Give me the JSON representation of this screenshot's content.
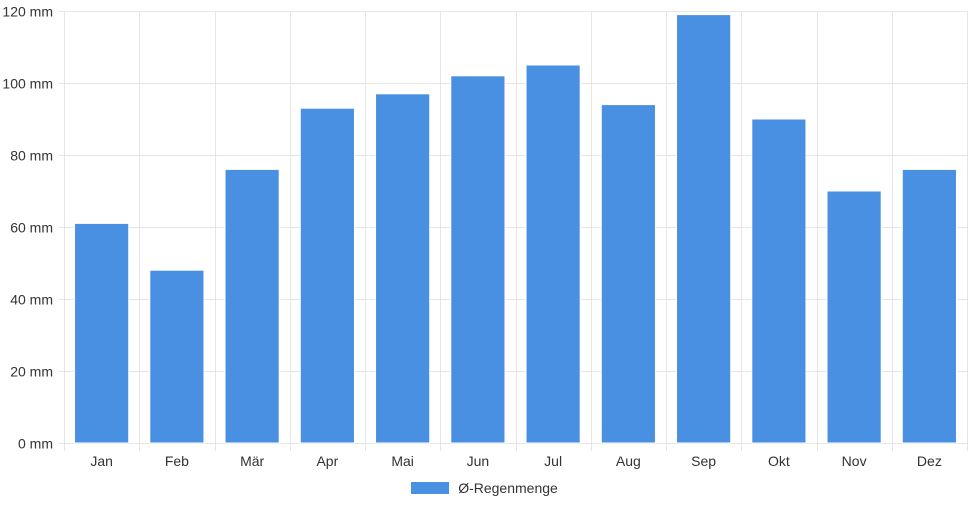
{
  "chart_data": {
    "type": "bar",
    "categories": [
      "Jan",
      "Feb",
      "Mär",
      "Apr",
      "Mai",
      "Jun",
      "Jul",
      "Aug",
      "Sep",
      "Okt",
      "Nov",
      "Dez"
    ],
    "series": [
      {
        "name": "Ø-Regenmenge",
        "values": [
          61,
          48,
          76,
          93,
          97,
          102,
          105,
          94,
          119,
          90,
          70,
          76
        ],
        "color": "#4a90e2",
        "border_color": "#ffffff"
      }
    ],
    "y_tick_labels": [
      "0 mm",
      "20 mm",
      "40 mm",
      "60 mm",
      "80 mm",
      "100 mm",
      "120 mm"
    ],
    "y_ticks": [
      0,
      20,
      40,
      60,
      80,
      100,
      120
    ],
    "ylim": [
      0,
      120
    ],
    "grid": true,
    "grid_color": "#e6e6e6",
    "legend_position": "bottom"
  }
}
